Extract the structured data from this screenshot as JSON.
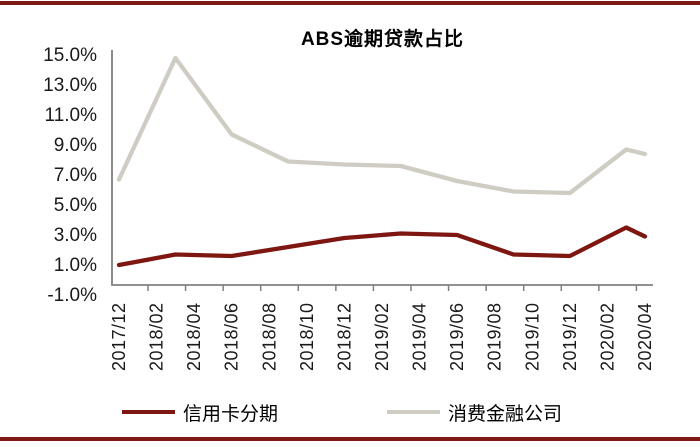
{
  "frame": {
    "top_rule_color": "#7E1A14",
    "bottom_rule_color": "#7E1A14"
  },
  "chart_data": {
    "type": "line",
    "title": "ABS逾期贷款占比",
    "xlabel": "",
    "ylabel": "",
    "grid": false,
    "legend_position": "bottom",
    "axis_color": "#808080",
    "text_color": "#1a1a1a",
    "y_axis": {
      "min": -1.0,
      "max": 15.0,
      "step": 2.0,
      "tick_labels": [
        "15.0%",
        "13.0%",
        "11.0%",
        "9.0%",
        "7.0%",
        "5.0%",
        "3.0%",
        "1.0%",
        "-1.0%"
      ]
    },
    "x_tick_labels": [
      "2017/12",
      "2018/02",
      "2018/04",
      "2018/06",
      "2018/08",
      "2018/10",
      "2018/12",
      "2019/02",
      "2019/04",
      "2019/06",
      "2019/08",
      "2019/10",
      "2019/12",
      "2020/02",
      "2020/04"
    ],
    "series": [
      {
        "name": "信用卡分期",
        "color": "#7E1712",
        "points": [
          [
            "2017/12",
            1.0
          ],
          [
            "2018/03",
            1.7
          ],
          [
            "2018/06",
            1.6
          ],
          [
            "2018/09",
            2.2
          ],
          [
            "2018/12",
            2.8
          ],
          [
            "2019/03",
            3.1
          ],
          [
            "2019/06",
            3.0
          ],
          [
            "2019/09",
            1.7
          ],
          [
            "2019/12",
            1.6
          ],
          [
            "2020/03",
            3.5
          ],
          [
            "2020/04",
            2.9
          ]
        ]
      },
      {
        "name": "消费金融公司",
        "color": "#CFCDC3",
        "points": [
          [
            "2017/12",
            6.7
          ],
          [
            "2018/03",
            14.8
          ],
          [
            "2018/06",
            9.7
          ],
          [
            "2018/09",
            7.9
          ],
          [
            "2018/12",
            7.7
          ],
          [
            "2019/03",
            7.6
          ],
          [
            "2019/06",
            6.6
          ],
          [
            "2019/09",
            5.9
          ],
          [
            "2019/12",
            5.8
          ],
          [
            "2020/03",
            8.7
          ],
          [
            "2020/04",
            8.4
          ]
        ]
      }
    ]
  }
}
